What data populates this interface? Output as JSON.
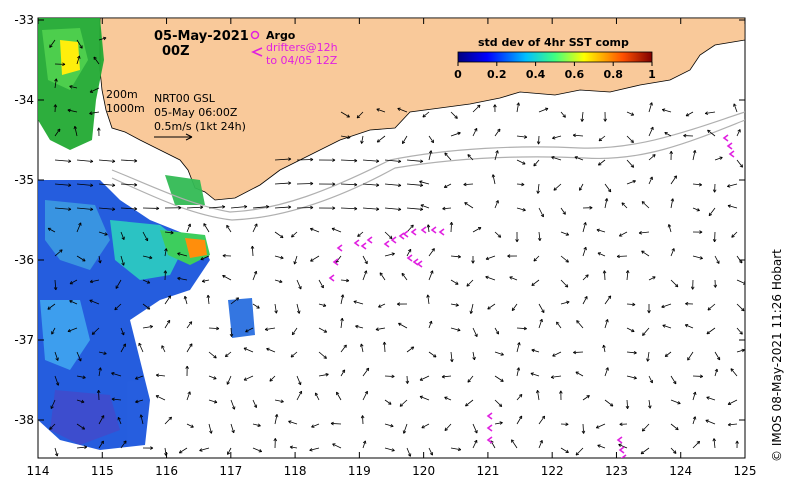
{
  "header": {
    "date": "05-May-2021",
    "hour": "00Z"
  },
  "legend": {
    "argo_label": "Argo",
    "drifters_label": "drifters@12h",
    "drifters_sub": "to 04/05 12Z",
    "isobath_200": "200m",
    "isobath_1000": "1000m",
    "product": "NRT00 GSL",
    "product_time": "05-May 06:00Z",
    "speed_scale": "0.5m/s (1kt 24h)"
  },
  "colorbar": {
    "title": "std dev of 4hr SST comp",
    "ticks": [
      "0",
      "0.2",
      "0.4",
      "0.6",
      "0.8",
      "1"
    ]
  },
  "axes": {
    "x_ticks": [
      "114",
      "115",
      "116",
      "117",
      "118",
      "119",
      "120",
      "121",
      "122",
      "123",
      "124",
      "125"
    ],
    "y_ticks": [
      "-33",
      "-34",
      "-35",
      "-36",
      "-37",
      "-38"
    ]
  },
  "credit": "© IMOS 08-May-2021 11:26 Hobart",
  "colors": {
    "land": "#f9c99a",
    "drifter": "#e020e0",
    "isobath": "#b0b0b0"
  }
}
